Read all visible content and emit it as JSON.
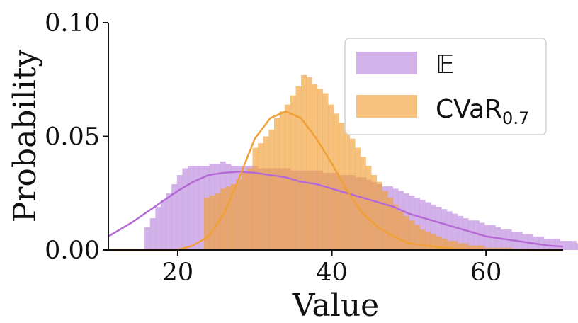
{
  "chart_data": {
    "type": "histogram",
    "xlabel": "Value",
    "ylabel": "Probability",
    "xlim": [
      11,
      70
    ],
    "ylim": [
      0,
      0.1
    ],
    "xticks": [
      {
        "value": 20,
        "label": "20"
      },
      {
        "value": 40,
        "label": "40"
      },
      {
        "value": 60,
        "label": "60"
      }
    ],
    "yticks": [
      {
        "value": 0,
        "label": "0.00"
      },
      {
        "value": 0.05,
        "label": "0.05"
      },
      {
        "value": 0.1,
        "label": "0.10"
      }
    ],
    "legend_placement": "top-right",
    "bin_width": 0.7,
    "series": [
      {
        "name": "𝔼",
        "color": "#c79be3",
        "line_color": "#b569d6",
        "x_start": 15.7,
        "values": [
          0.01,
          0.014,
          0.019,
          0.022,
          0.025,
          0.029,
          0.033,
          0.036,
          0.037,
          0.037,
          0.037,
          0.037,
          0.038,
          0.038,
          0.039,
          0.038,
          0.037,
          0.037,
          0.037,
          0.037,
          0.037,
          0.036,
          0.036,
          0.036,
          0.036,
          0.036,
          0.036,
          0.035,
          0.035,
          0.035,
          0.035,
          0.035,
          0.035,
          0.034,
          0.034,
          0.034,
          0.033,
          0.033,
          0.033,
          0.032,
          0.032,
          0.031,
          0.03,
          0.029,
          0.028,
          0.028,
          0.027,
          0.026,
          0.025,
          0.024,
          0.023,
          0.022,
          0.021,
          0.02,
          0.019,
          0.018,
          0.017,
          0.016,
          0.015,
          0.014,
          0.013,
          0.013,
          0.012,
          0.011,
          0.011,
          0.01,
          0.009,
          0.009,
          0.008,
          0.008,
          0.007,
          0.007,
          0.006,
          0.006,
          0.005,
          0.005,
          0.005,
          0.004,
          0.004,
          0.004,
          0.003,
          0.003,
          0.003,
          0.003,
          0.002,
          0.002,
          0.002,
          0.002,
          0.002,
          0.001
        ],
        "curve": {
          "x": [
            11,
            14,
            17,
            20,
            22,
            24,
            26,
            28,
            30,
            32,
            34,
            36,
            38,
            40,
            42,
            44,
            46,
            48,
            50,
            52,
            54,
            56,
            58,
            60,
            62,
            64,
            66,
            68,
            70
          ],
          "y": [
            0.006,
            0.012,
            0.019,
            0.026,
            0.03,
            0.033,
            0.034,
            0.0345,
            0.034,
            0.033,
            0.032,
            0.03,
            0.029,
            0.027,
            0.025,
            0.023,
            0.021,
            0.019,
            0.016,
            0.014,
            0.012,
            0.01,
            0.008,
            0.006,
            0.005,
            0.004,
            0.003,
            0.002,
            0.0015
          ]
        }
      },
      {
        "name": "CVaR",
        "name_subscript": "0.7",
        "color": "#f0a035",
        "line_color": "#f0a035",
        "x_start": 23.4,
        "values": [
          0.023,
          0.024,
          0.025,
          0.027,
          0.028,
          0.029,
          0.031,
          0.034,
          0.036,
          0.045,
          0.047,
          0.05,
          0.053,
          0.058,
          0.061,
          0.064,
          0.068,
          0.072,
          0.077,
          0.076,
          0.073,
          0.071,
          0.069,
          0.064,
          0.06,
          0.056,
          0.053,
          0.049,
          0.045,
          0.041,
          0.037,
          0.033,
          0.03,
          0.026,
          0.023,
          0.02,
          0.017,
          0.015,
          0.013,
          0.011,
          0.009,
          0.008,
          0.007,
          0.006,
          0.005,
          0.004,
          0.004,
          0.003,
          0.003,
          0.002,
          0.002,
          0.002,
          0.001,
          0.001,
          0.001,
          0.001,
          0.001
        ],
        "curve": {
          "x": [
            11,
            20,
            22,
            24,
            26,
            28,
            30,
            32,
            34,
            36,
            38,
            40,
            42,
            44,
            46,
            48,
            50,
            52,
            56,
            60,
            66,
            70
          ],
          "y": [
            0,
            0,
            0.002,
            0.006,
            0.016,
            0.032,
            0.049,
            0.058,
            0.061,
            0.058,
            0.049,
            0.038,
            0.026,
            0.016,
            0.01,
            0.006,
            0.003,
            0.002,
            0.0005,
            0.0001,
            0,
            0
          ]
        }
      }
    ]
  }
}
